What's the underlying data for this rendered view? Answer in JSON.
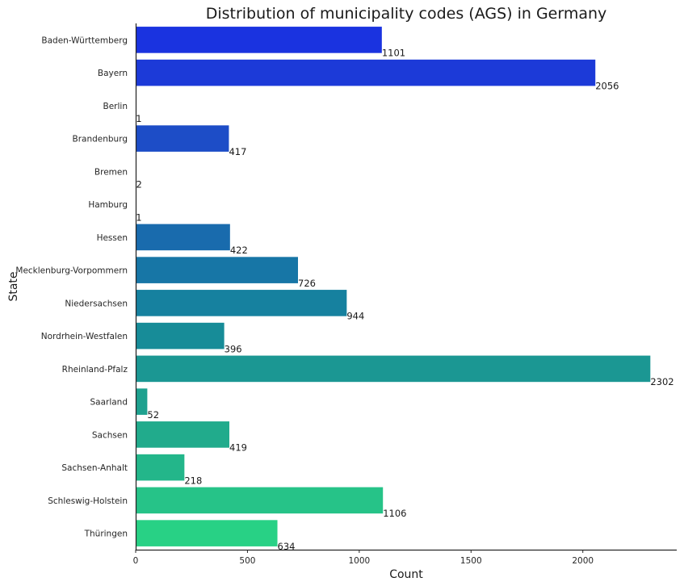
{
  "chart_data": {
    "type": "bar",
    "orientation": "horizontal",
    "title": "Distribution of municipality codes (AGS) in Germany",
    "xlabel": "Count",
    "ylabel": "State",
    "xlim": [
      0,
      2420
    ],
    "xticks": [
      0,
      500,
      1000,
      1500,
      2000
    ],
    "grid": false,
    "categories": [
      "Baden-Württemberg",
      "Bayern",
      "Berlin",
      "Brandenburg",
      "Bremen",
      "Hamburg",
      "Hessen",
      "Mecklenburg-Vorpommern",
      "Niedersachsen",
      "Nordrhein-Westfalen",
      "Rheinland-Pfalz",
      "Saarland",
      "Sachsen",
      "Sachsen-Anhalt",
      "Schleswig-Holstein",
      "Thüringen"
    ],
    "values": [
      1101,
      2056,
      1,
      417,
      2,
      1,
      422,
      726,
      944,
      396,
      2302,
      52,
      419,
      218,
      1106,
      634
    ],
    "colors": [
      "#1a33e0",
      "#1c3ad8",
      "#1d43d0",
      "#1d4dc7",
      "#1c57bf",
      "#1b61b6",
      "#196bad",
      "#1776a6",
      "#16819f",
      "#178c98",
      "#1b9793",
      "#1ea18f",
      "#21ab8c",
      "#23b68a",
      "#26c388",
      "#28d185"
    ]
  }
}
